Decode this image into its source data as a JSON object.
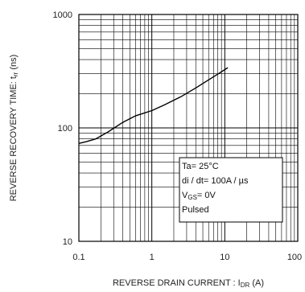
{
  "chart_data": {
    "type": "line",
    "xscale": "log",
    "yscale": "log",
    "xlim": [
      0.1,
      100
    ],
    "ylim": [
      10,
      1000
    ],
    "grid": true,
    "x_ticks": [
      {
        "value": 0.1,
        "label": "0.1"
      },
      {
        "value": 1,
        "label": "1"
      },
      {
        "value": 10,
        "label": "10"
      },
      {
        "value": 100,
        "label": "100"
      }
    ],
    "y_ticks": [
      {
        "value": 10,
        "label": "10"
      },
      {
        "value": 100,
        "label": "100"
      },
      {
        "value": 1000,
        "label": "1000"
      }
    ],
    "xlabel": {
      "main": "REVERSE DRAIN CURRENT : I",
      "sub": "DR",
      "tail": " (A)"
    },
    "ylabel": {
      "main": "REVERSE RECOVERY TIME: t",
      "sub": "rr",
      "tail": " (ns)"
    },
    "series": [
      {
        "x": [
          0.1,
          0.13,
          0.17,
          0.25,
          0.4,
          0.6,
          1.0,
          1.5,
          2.5,
          4.0,
          6.0,
          8.5,
          11.0
        ],
        "y": [
          73,
          76,
          80,
          92,
          112,
          128,
          142,
          160,
          188,
          225,
          265,
          305,
          340
        ]
      }
    ],
    "legend": {
      "placement": "bottom-right",
      "lines": [
        {
          "main": "Ta= 25°C"
        },
        {
          "main": "di / dt= 100A / µs"
        },
        {
          "main": "V",
          "sub": "GS",
          "tail": "= 0V"
        },
        {
          "main": "Pulsed"
        }
      ]
    },
    "colors": {
      "line": "#000000",
      "grid": "#000000",
      "background": "#ffffff"
    }
  }
}
